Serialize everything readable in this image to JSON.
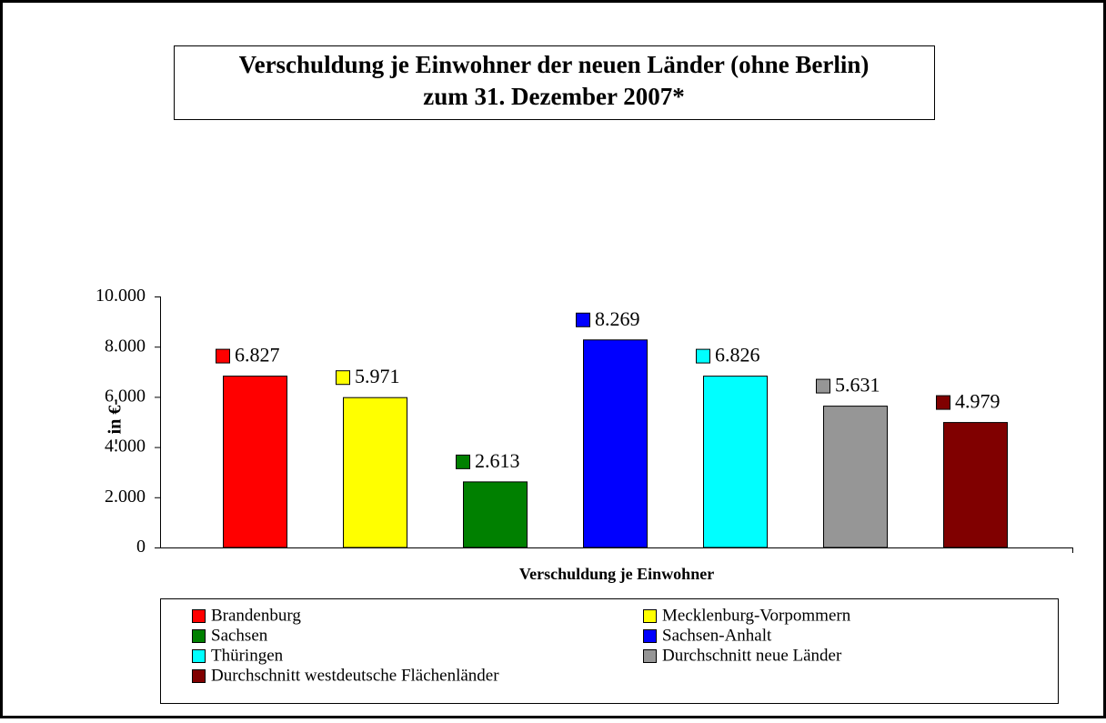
{
  "chart_data": {
    "type": "bar",
    "title": "Verschuldung je Einwohner der neuen Länder (ohne Berlin)",
    "subtitle": "zum 31. Dezember 2007*",
    "ylabel": "- in €-",
    "xlabel": "Verschuldung je Einwohner",
    "ylim": [
      0,
      10000
    ],
    "yticks": [
      0,
      {
        "value": 2000,
        "label": "2.000"
      },
      {
        "value": 4000,
        "label": "4.000"
      },
      {
        "value": 6000,
        "label": "6.000"
      },
      {
        "value": 8000,
        "label": "8.000"
      },
      {
        "value": 10000,
        "label": "10.000"
      }
    ],
    "series": [
      {
        "name": "Brandenburg",
        "color": "#ff0000",
        "values": [
          6827
        ],
        "value_labels": [
          "6.827"
        ]
      },
      {
        "name": "Mecklenburg-Vorpommern",
        "color": "#ffff00",
        "values": [
          5971
        ],
        "value_labels": [
          "5.971"
        ]
      },
      {
        "name": "Sachsen",
        "color": "#008000",
        "values": [
          2613
        ],
        "value_labels": [
          "2.613"
        ]
      },
      {
        "name": "Sachsen-Anhalt",
        "color": "#0000ff",
        "values": [
          8269
        ],
        "value_labels": [
          "8.269"
        ]
      },
      {
        "name": "Thüringen",
        "color": "#00ffff",
        "values": [
          6826
        ],
        "value_labels": [
          "6.826"
        ]
      },
      {
        "name": "Durchschnitt neue Länder",
        "color": "#969696",
        "values": [
          5631
        ],
        "value_labels": [
          "5.631"
        ]
      },
      {
        "name": "Durchschnitt westdeutsche Flächenländer",
        "color": "#800000",
        "values": [
          4979
        ],
        "value_labels": [
          "4.979"
        ]
      }
    ]
  }
}
